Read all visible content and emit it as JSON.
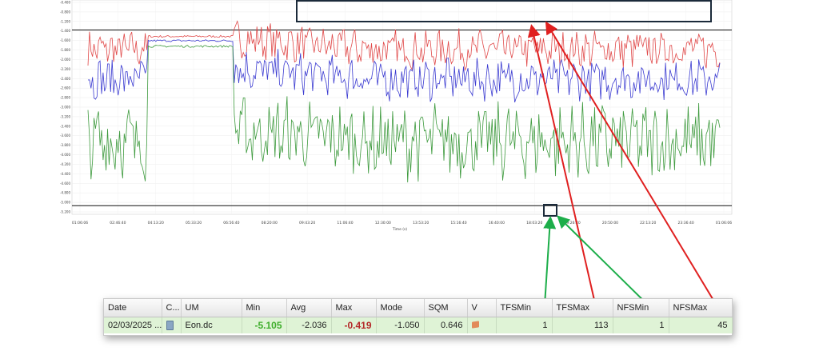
{
  "chart_data": {
    "type": "line",
    "title": "",
    "xlabel": "Time (s)",
    "ylabel": "",
    "x_ticks": [
      "01:06:06",
      "02:46:40",
      "04:13:20",
      "05:33:20",
      "06:56:40",
      "08:20:00",
      "09:43:20",
      "11:06:40",
      "12:30:00",
      "13:53:20",
      "15:16:40",
      "16:40:00",
      "18:03:20",
      "19:26:40",
      "20:50:00",
      "22:13:20",
      "23:36:40",
      "01:06:06"
    ],
    "y_ticks": [
      "-0.400",
      "-0.800",
      "-1.200",
      "-1.400",
      "-1.600",
      "-1.800",
      "-2.000",
      "-2.200",
      "-2.400",
      "-2.600",
      "-2.800",
      "-3.000",
      "-3.200",
      "-3.400",
      "-3.600",
      "-3.800",
      "-4.000",
      "-4.200",
      "-4.400",
      "-4.600",
      "-4.800",
      "-5.000",
      "-5.200"
    ],
    "ylim": [
      -5.3,
      -0.3
    ],
    "reference_lines": [
      -1.0,
      -5.1
    ],
    "series": [
      {
        "color": "#e04848",
        "base": -1.45,
        "plateau": -1.15,
        "amp": 0.38
      },
      {
        "color": "#3b3bd1",
        "base": -2.15,
        "plateau": -1.25,
        "amp": 0.42
      },
      {
        "color": "#3d9a3d",
        "base": -3.6,
        "plateau": -1.38,
        "amp": 0.75
      }
    ],
    "grid": true,
    "legend": "none"
  },
  "annotation_colors": {
    "red": "#e02020",
    "green": "#1dae4a",
    "box": "#1b2a3a"
  },
  "table": {
    "headers": [
      "Date",
      "C...",
      "UM",
      "Min",
      "Avg",
      "Max",
      "Mode",
      "SQM",
      "V",
      "TFSMin",
      "TFSMax",
      "NFSMin",
      "NFSMax"
    ],
    "row": {
      "date": "02/03/2025 ...",
      "channel_icon": "device-icon",
      "um": "Eon.dc",
      "min": "-5.105",
      "avg": "-2.036",
      "max": "-0.419",
      "mode": "-1.050",
      "sqm": "0.646",
      "v_icon": "flag-icon",
      "tfsmin": "1",
      "tfsmax": "113",
      "nfsmin": "1",
      "nfsmax": "45"
    }
  }
}
